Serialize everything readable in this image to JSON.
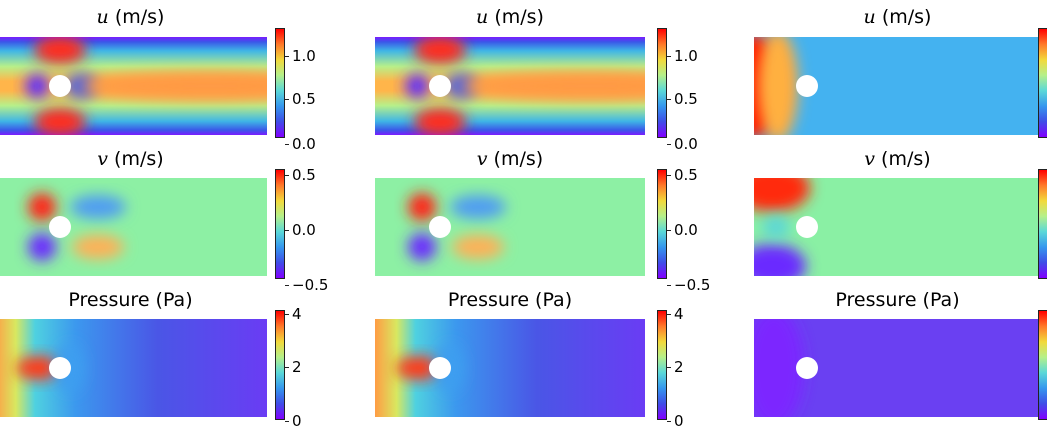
{
  "figure": {
    "columns": [
      {
        "panels": [
          {
            "field": "u",
            "title_sym": "u",
            "title_unit": " (m/s)",
            "ticks": [
              "1.0",
              "0.5",
              "0.0"
            ],
            "colorbar_range": [
              0.0,
              1.25
            ]
          },
          {
            "field": "v",
            "title_sym": "v",
            "title_unit": " (m/s)",
            "ticks": [
              "0.5",
              "0.0",
              "−0.5"
            ],
            "colorbar_range": [
              -0.5,
              0.5
            ]
          },
          {
            "field": "p",
            "title_sym": "",
            "title_unit": "Pressure (Pa)",
            "ticks": [
              "4",
              "2",
              "0"
            ],
            "colorbar_range": [
              0,
              4
            ]
          }
        ]
      },
      {
        "panels": [
          {
            "field": "u",
            "title_sym": "u",
            "title_unit": " (m/s)",
            "ticks": [
              "1.0",
              "0.5",
              "0.0"
            ],
            "colorbar_range": [
              0.0,
              1.25
            ]
          },
          {
            "field": "v",
            "title_sym": "v",
            "title_unit": " (m/s)",
            "ticks": [
              "0.5",
              "0.0",
              "−0.5"
            ],
            "colorbar_range": [
              -0.5,
              0.5
            ]
          },
          {
            "field": "p",
            "title_sym": "",
            "title_unit": "Pressure (Pa)",
            "ticks": [
              "4",
              "2",
              "0"
            ],
            "colorbar_range": [
              0,
              4
            ]
          }
        ]
      },
      {
        "panels": [
          {
            "field": "u_pred",
            "title_sym": "u",
            "title_unit": " (m/s)",
            "ticks": [],
            "colorbar_range": [
              0.0,
              1.25
            ]
          },
          {
            "field": "v_pred",
            "title_sym": "v",
            "title_unit": " (m/s)",
            "ticks": [],
            "colorbar_range": [
              -0.5,
              0.5
            ]
          },
          {
            "field": "p_pred",
            "title_sym": "",
            "title_unit": "Pressure (Pa)",
            "ticks": [],
            "colorbar_range": [
              0,
              4
            ]
          }
        ]
      }
    ],
    "colormap": "rainbow"
  }
}
